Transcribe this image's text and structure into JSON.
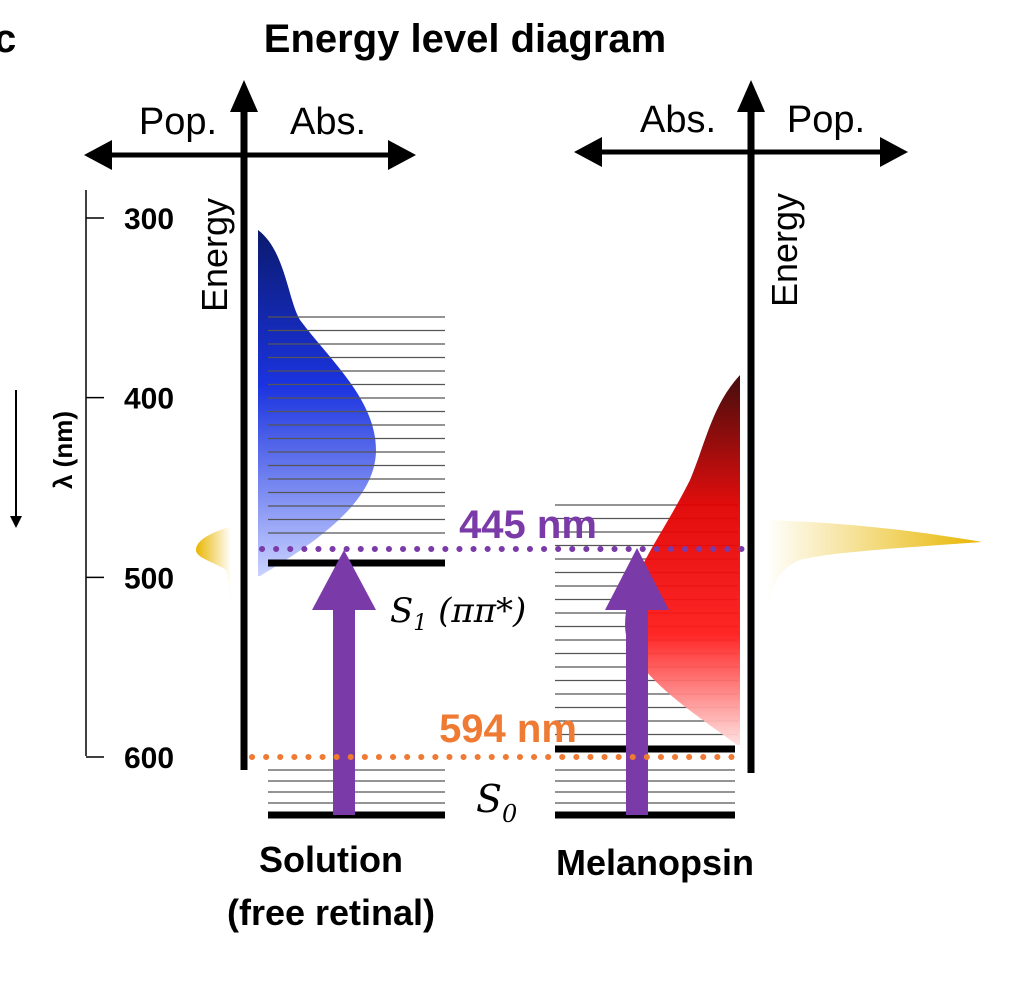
{
  "figure": {
    "panel_label": "c",
    "title": "Energy level diagram"
  },
  "scale": {
    "label": "λ (nm)",
    "ticks": [
      300,
      400,
      500,
      600
    ]
  },
  "solution": {
    "label_line1": "Solution",
    "label_line2": "(free retinal)",
    "pop_label": "Pop.",
    "abs_label": "Abs.",
    "energy_label": "Energy",
    "s1_level": "S",
    "s1_subscript": "1",
    "s1_suffix": " (ππ*)",
    "color_abs": "#1a2fd6"
  },
  "melanopsin": {
    "label": "Melanopsin",
    "pop_label": "Pop.",
    "abs_label": "Abs.",
    "energy_label": "Energy",
    "color_abs": "#e00000"
  },
  "ground_level": {
    "symbol": "S",
    "subscript": "0"
  },
  "transitions": {
    "excitation_label": "445 nm",
    "excitation_color": "#7a3aa8",
    "ground_label": "594 nm",
    "ground_color": "#ee7a33",
    "arrow_color": "#7a3aa8"
  },
  "colors": {
    "population_gold": "#e8b600",
    "axis": "#000000"
  }
}
